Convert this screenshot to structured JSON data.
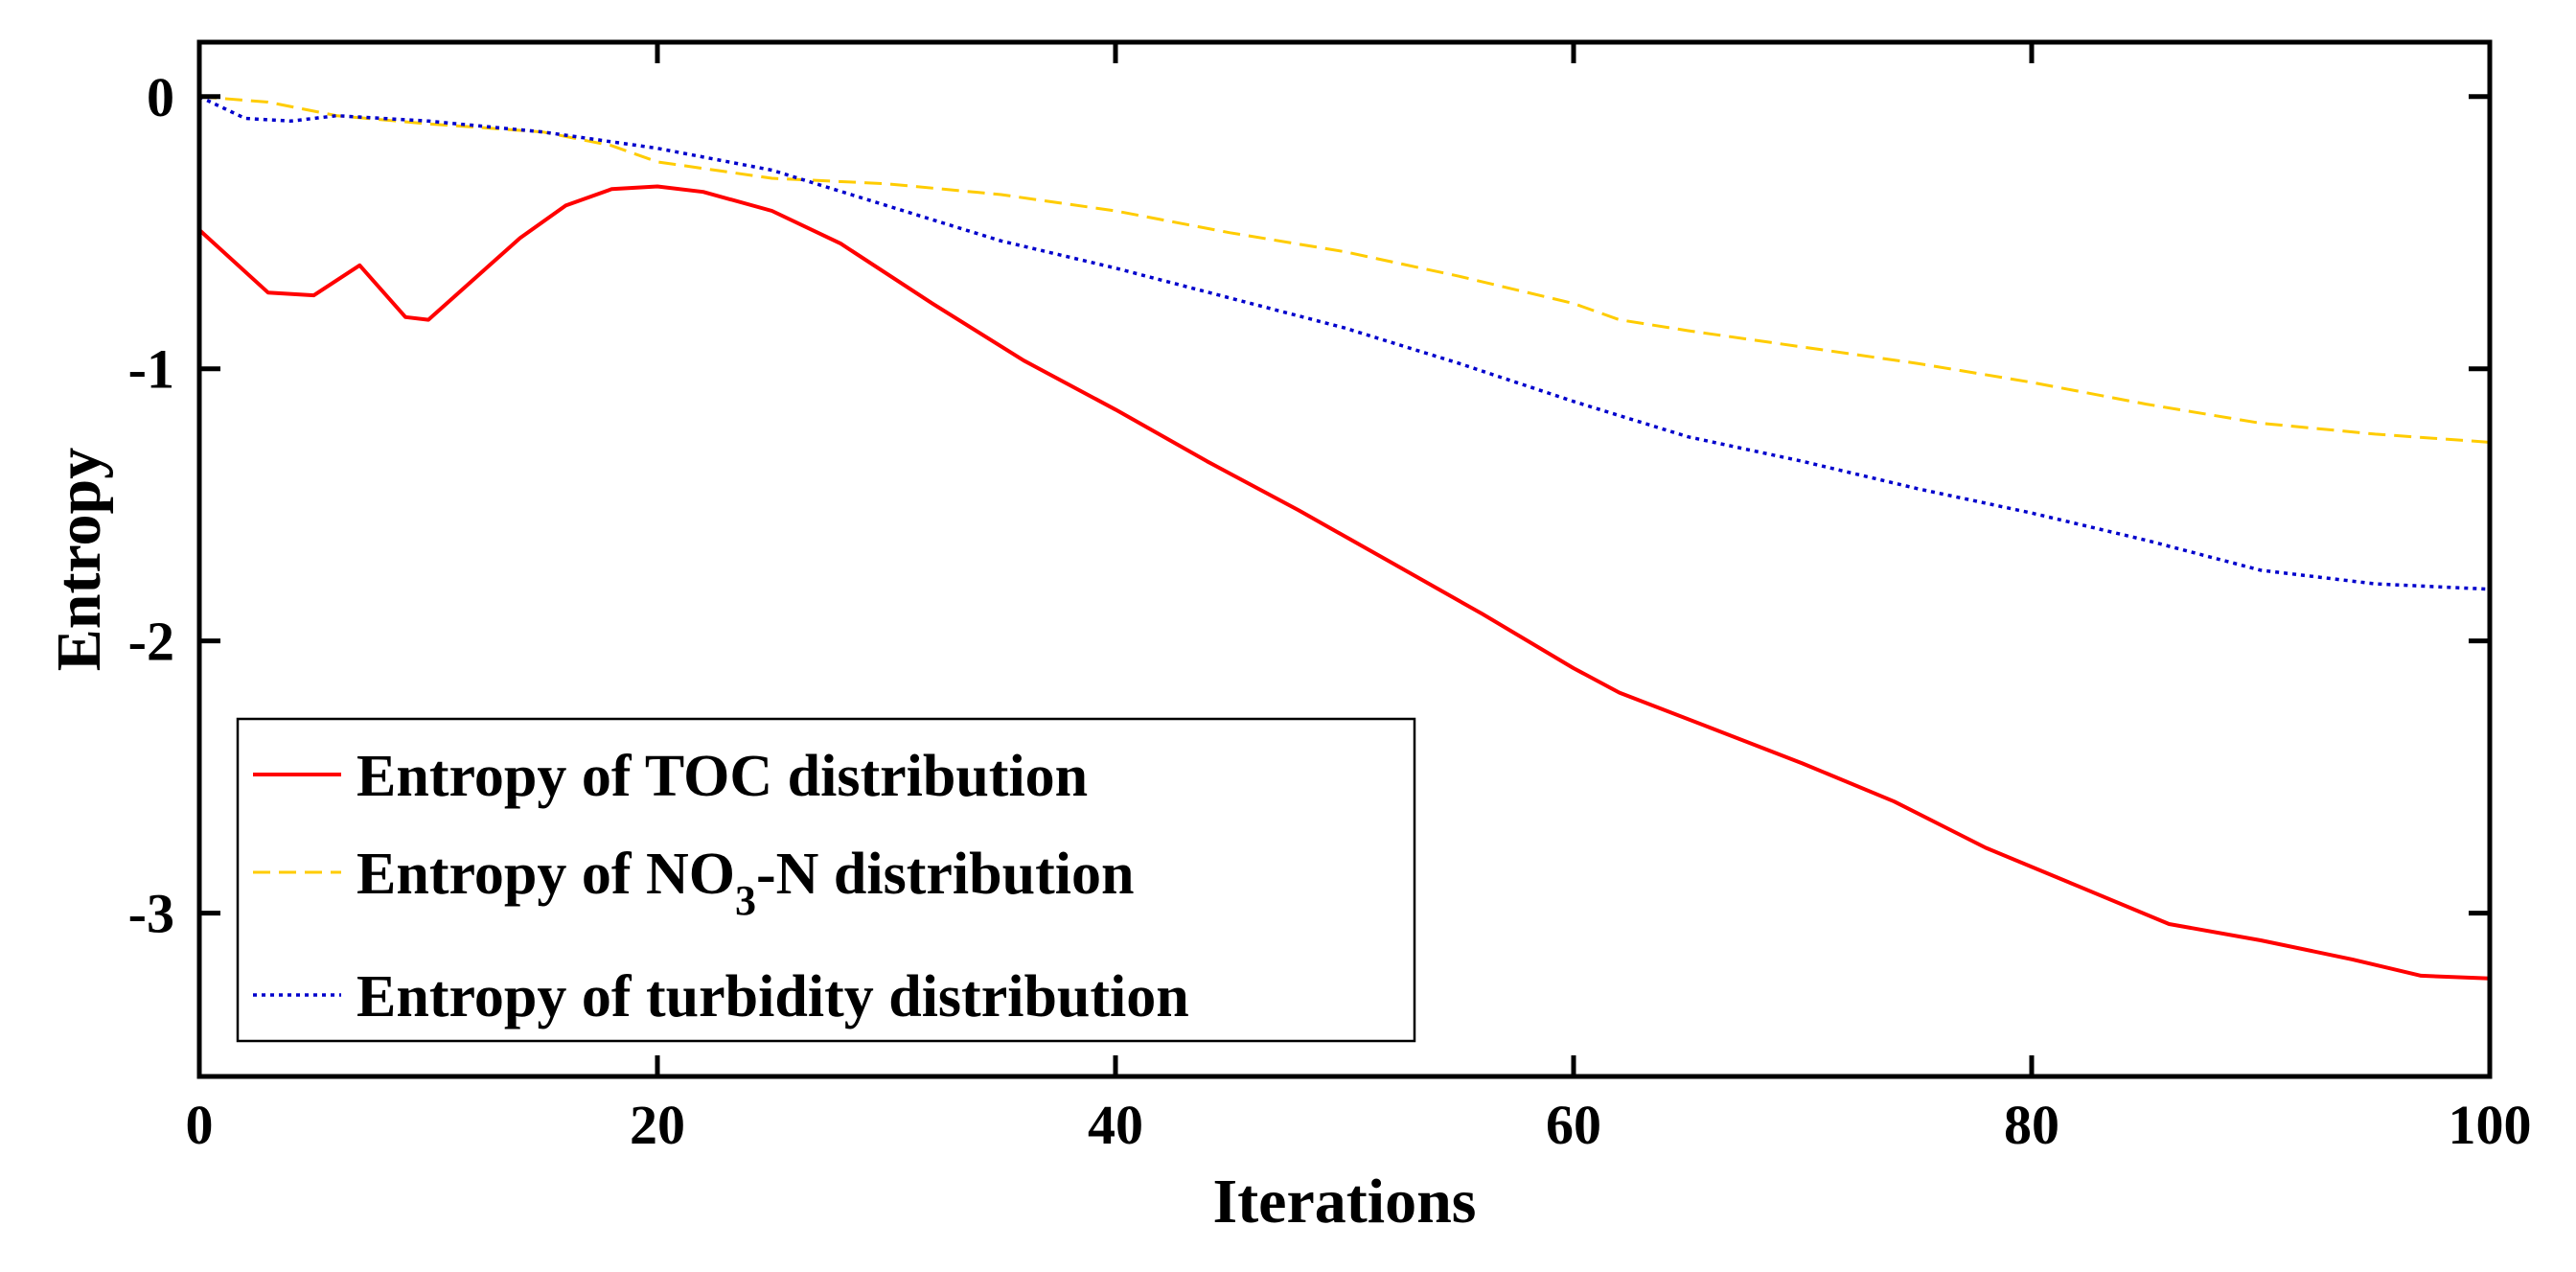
{
  "chart_data": {
    "type": "line",
    "title": "",
    "xlabel": "Iterations",
    "ylabel": "Entropy",
    "xlim": [
      0,
      100
    ],
    "ylim": [
      -3.6,
      0.2
    ],
    "xticks": [
      0,
      20,
      40,
      60,
      80,
      100
    ],
    "yticks": [
      0,
      -1,
      -2,
      -3
    ],
    "xtick_labels": [
      "0",
      "20",
      "40",
      "60",
      "80",
      "100"
    ],
    "ytick_labels": [
      "0",
      "-1",
      "-2",
      "-3"
    ],
    "grid": false,
    "legend_position": "bottom-left",
    "series": [
      {
        "name": "Entropy of TOC distribution",
        "legend_main": "Entropy of TOC distribution",
        "color": "#ff0000",
        "style": "solid",
        "x": [
          0,
          3,
          5,
          7,
          9,
          10,
          12,
          14,
          16,
          18,
          20,
          22,
          25,
          28,
          32,
          36,
          40,
          44,
          48,
          52,
          56,
          60,
          62,
          66,
          70,
          74,
          78,
          82,
          86,
          90,
          94,
          97,
          100
        ],
        "y": [
          -0.49,
          -0.72,
          -0.73,
          -0.62,
          -0.81,
          -0.82,
          -0.67,
          -0.52,
          -0.4,
          -0.34,
          -0.33,
          -0.35,
          -0.42,
          -0.54,
          -0.76,
          -0.97,
          -1.15,
          -1.34,
          -1.52,
          -1.71,
          -1.9,
          -2.1,
          -2.19,
          -2.32,
          -2.45,
          -2.59,
          -2.76,
          -2.9,
          -3.04,
          -3.1,
          -3.17,
          -3.23,
          -3.24
        ]
      },
      {
        "name": "Entropy of NO3-N distribution",
        "legend_main": "Entropy of NO",
        "legend_sub": "3",
        "legend_tail": "-N distribution",
        "color": "#ffcc00",
        "style": "dashed",
        "x": [
          0,
          3,
          6,
          10,
          15,
          18,
          20,
          25,
          30,
          35,
          40,
          45,
          50,
          55,
          60,
          62,
          65,
          70,
          75,
          80,
          85,
          90,
          95,
          100
        ],
        "y": [
          0,
          -0.02,
          -0.07,
          -0.1,
          -0.13,
          -0.18,
          -0.24,
          -0.3,
          -0.32,
          -0.36,
          -0.42,
          -0.5,
          -0.57,
          -0.66,
          -0.76,
          -0.82,
          -0.86,
          -0.92,
          -0.98,
          -1.05,
          -1.13,
          -1.2,
          -1.24,
          -1.27
        ]
      },
      {
        "name": "Entropy of turbidity distribution",
        "legend_main": "Entropy of turbidity distribution",
        "color": "#0000cc",
        "style": "dotted",
        "x": [
          0,
          2,
          4,
          6,
          10,
          15,
          20,
          25,
          30,
          35,
          40,
          45,
          50,
          55,
          60,
          65,
          70,
          75,
          80,
          85,
          90,
          95,
          100
        ],
        "y": [
          0,
          -0.08,
          -0.09,
          -0.07,
          -0.09,
          -0.13,
          -0.19,
          -0.27,
          -0.4,
          -0.53,
          -0.63,
          -0.74,
          -0.85,
          -0.98,
          -1.12,
          -1.25,
          -1.34,
          -1.44,
          -1.53,
          -1.63,
          -1.74,
          -1.79,
          -1.81
        ]
      }
    ]
  }
}
